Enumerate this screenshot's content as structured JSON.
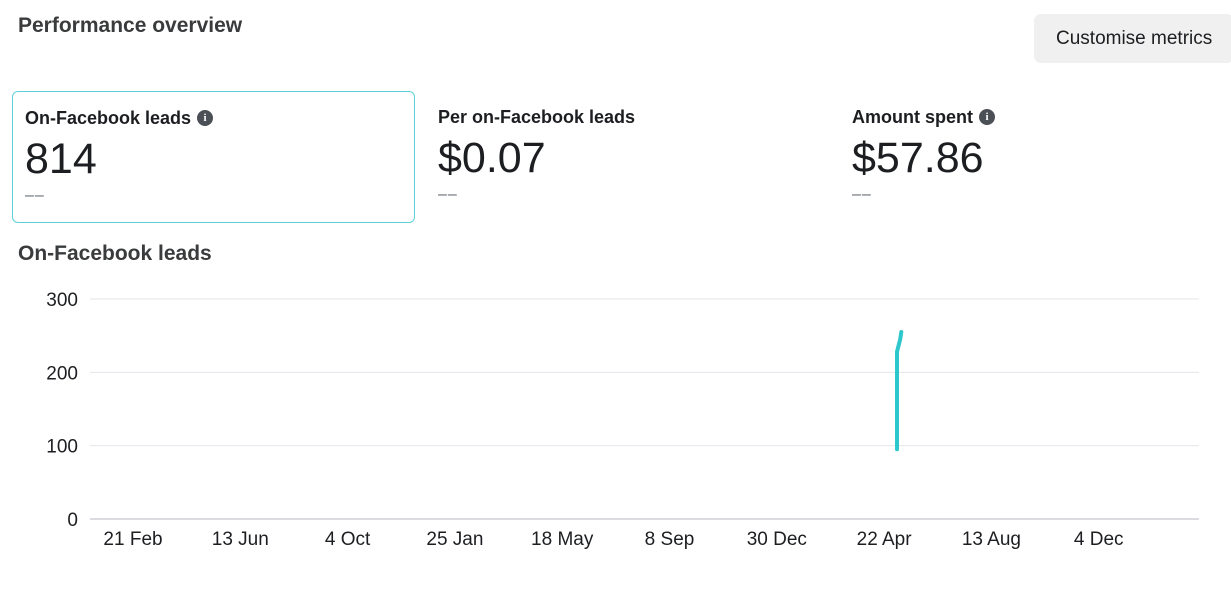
{
  "header": {
    "title": "Performance overview",
    "customise_label": "Customise metrics"
  },
  "metrics": [
    {
      "label": "On-Facebook leads",
      "value": "814",
      "delta": "––",
      "has_info": true,
      "selected": true
    },
    {
      "label": "Per on-Facebook leads",
      "value": "$0.07",
      "delta": "––",
      "has_info": false,
      "selected": false
    },
    {
      "label": "Amount spent",
      "value": "$57.86",
      "delta": "––",
      "has_info": true,
      "selected": false
    }
  ],
  "chart_title": "On-Facebook leads",
  "chart_data": {
    "type": "line",
    "ylim": [
      0,
      300
    ],
    "yticks": [
      "0",
      "100",
      "200",
      "300"
    ],
    "xticks": [
      "21 Feb",
      "13 Jun",
      "4 Oct",
      "25 Jan",
      "18 May",
      "8 Sep",
      "30 Dec",
      "22 Apr",
      "13 Aug",
      "4 Dec"
    ],
    "grid": true,
    "color": "#2ec7cc",
    "series": [
      {
        "points": [
          [
            7.12,
            95
          ],
          [
            7.12,
            228
          ],
          [
            7.15,
            245
          ],
          [
            7.16,
            255
          ]
        ]
      }
    ]
  },
  "icons": {
    "info": "info-icon"
  }
}
